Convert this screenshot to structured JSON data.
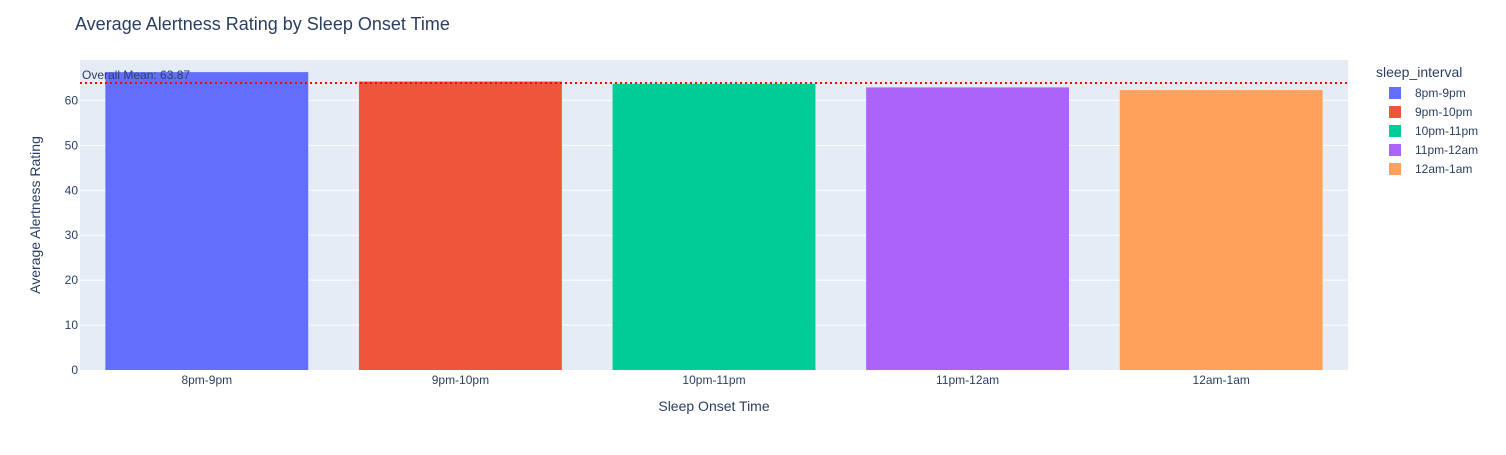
{
  "chart_data": {
    "type": "bar",
    "title": "Average Alertness Rating by Sleep Onset Time",
    "xlabel": "Sleep Onset Time",
    "ylabel": "Average Alertness Rating",
    "categories": [
      "8pm-9pm",
      "9pm-10pm",
      "10pm-11pm",
      "11pm-12am",
      "12am-1am"
    ],
    "values": [
      66.3,
      64.2,
      63.7,
      62.9,
      62.3
    ],
    "colors": [
      "#636efa",
      "#ef553b",
      "#00cc96",
      "#ab63fa",
      "#ffa15a"
    ],
    "ylim": [
      0,
      69
    ],
    "yticks": [
      0,
      10,
      20,
      30,
      40,
      50,
      60
    ],
    "grid": true,
    "legend": {
      "title": "sleep_interval",
      "placement": "right",
      "entries": [
        "8pm-9pm",
        "9pm-10pm",
        "10pm-11pm",
        "11pm-12am",
        "12am-1am"
      ]
    },
    "reference_line": {
      "value": 63.87,
      "label": "Overall Mean: 63.87",
      "color": "#ff0000",
      "style": "dotted"
    }
  }
}
